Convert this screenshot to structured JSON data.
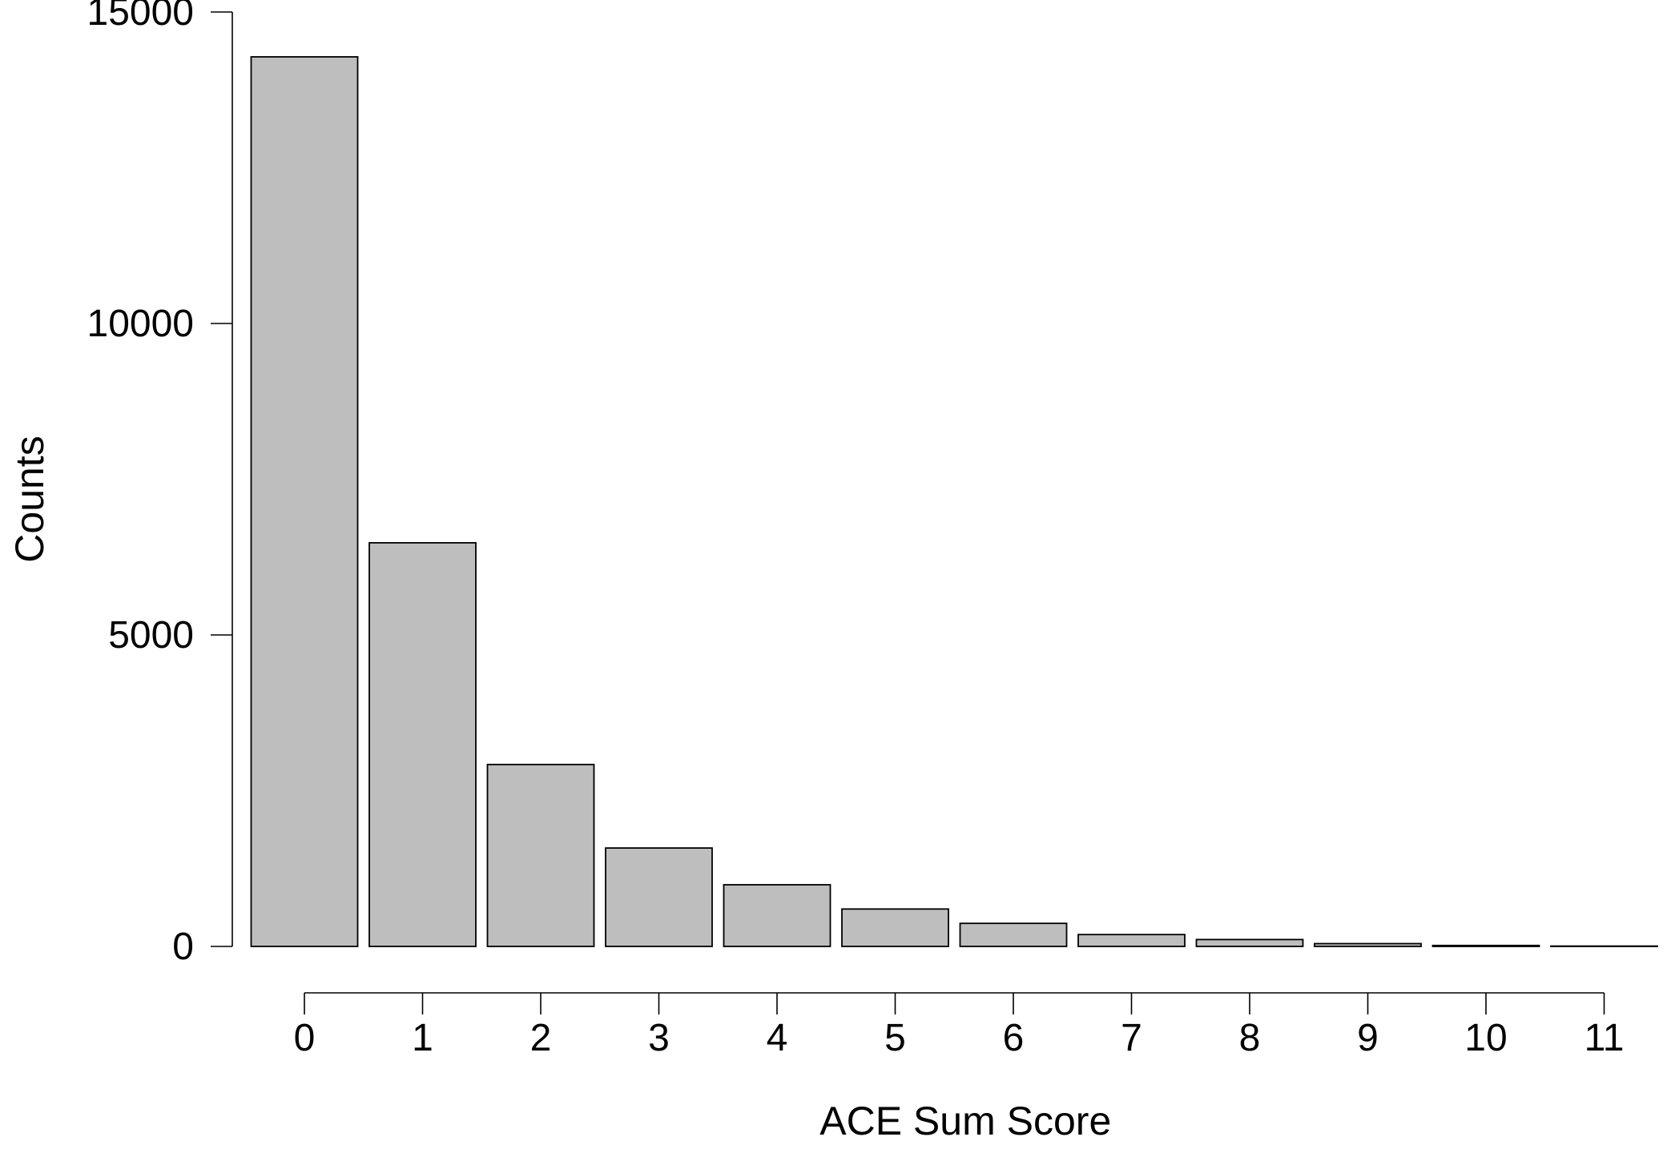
{
  "chart_data": {
    "type": "bar",
    "title": "",
    "xlabel": "ACE Sum Score",
    "ylabel": "Counts",
    "categories": [
      "0",
      "1",
      "2",
      "3",
      "4",
      "5",
      "6",
      "7",
      "8",
      "9",
      "10",
      "11"
    ],
    "values": [
      14280,
      6480,
      2920,
      1580,
      990,
      600,
      370,
      190,
      110,
      45,
      15,
      5
    ],
    "yticks": [
      0,
      5000,
      10000,
      15000
    ],
    "ylim": [
      0,
      15000
    ],
    "grid": false,
    "legend": "none",
    "colors": {
      "bar_fill": "#bebebe",
      "bar_stroke": "#000000",
      "axis": "#000000",
      "background": "#ffffff"
    }
  }
}
